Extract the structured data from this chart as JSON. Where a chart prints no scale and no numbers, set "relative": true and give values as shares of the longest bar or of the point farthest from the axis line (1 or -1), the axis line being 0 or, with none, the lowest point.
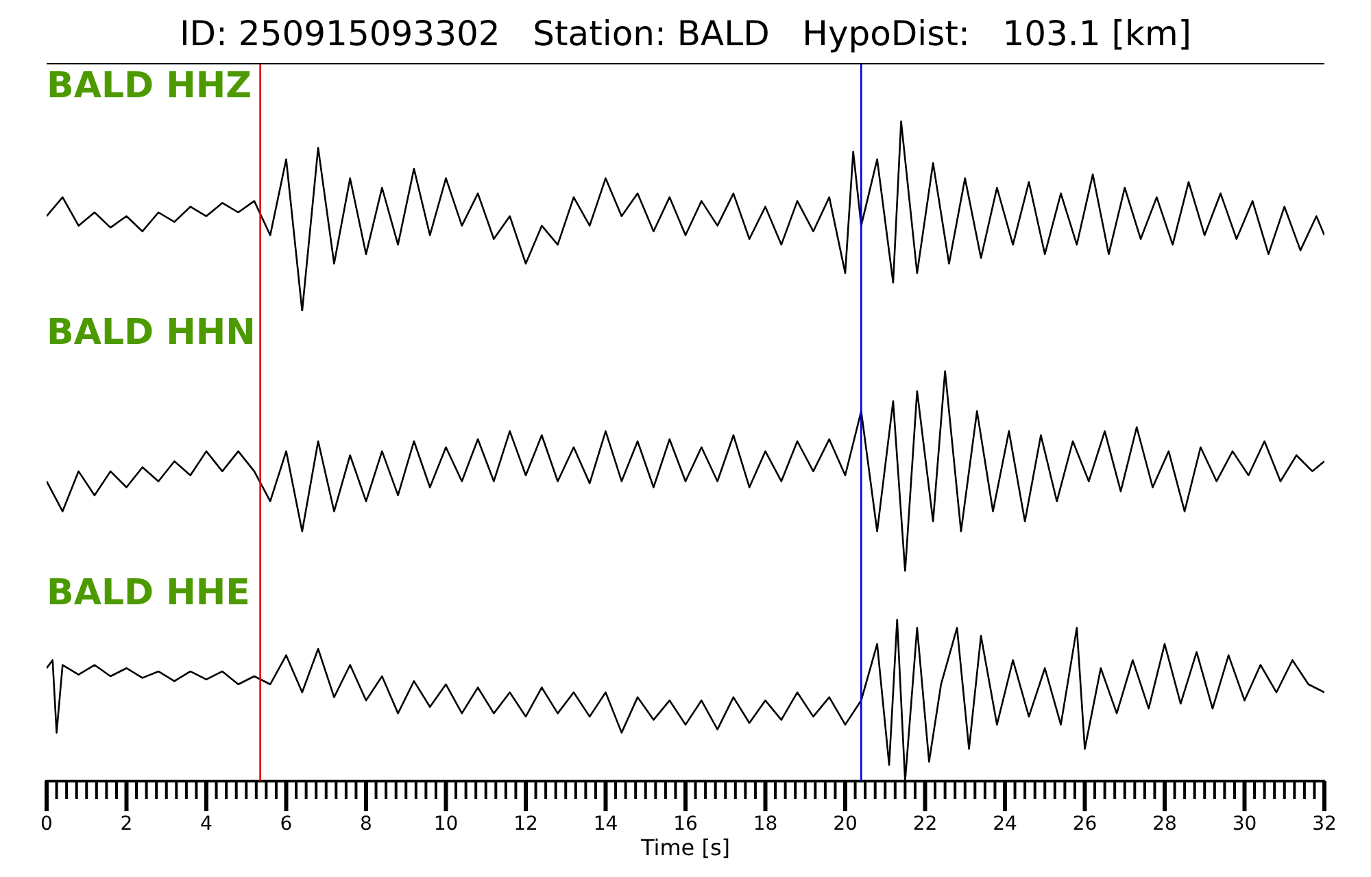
{
  "chart_data": [
    {
      "type": "line",
      "title": "ID: 250915093302   Station: BALD   HypoDist:   103.1 [km]",
      "relative": true,
      "xlim": [
        0,
        32
      ],
      "tick_labels": false,
      "ref_lines": [
        {
          "axis": "x",
          "value": 5.35,
          "color": "#e00000"
        },
        {
          "axis": "x",
          "value": 20.4,
          "color": "#0000e0"
        }
      ],
      "x": [
        0,
        0.4,
        0.8,
        1.2,
        1.6,
        2.0,
        2.4,
        2.8,
        3.2,
        3.6,
        4.0,
        4.4,
        4.8,
        5.2,
        5.6,
        6.0,
        6.4,
        6.8,
        7.2,
        7.6,
        8.0,
        8.4,
        8.8,
        9.2,
        9.6,
        10.0,
        10.4,
        10.8,
        11.2,
        11.6,
        12.0,
        12.4,
        12.8,
        13.2,
        13.6,
        14.0,
        14.4,
        14.8,
        15.2,
        15.6,
        16.0,
        16.4,
        16.8,
        17.2,
        17.6,
        18.0,
        18.4,
        18.8,
        19.2,
        19.6,
        20.0,
        20.2,
        20.4,
        20.8,
        21.2,
        21.4,
        21.8,
        22.2,
        22.6,
        23.0,
        23.4,
        23.8,
        24.2,
        24.6,
        25.0,
        25.4,
        25.8,
        26.2,
        26.6,
        27.0,
        27.4,
        27.8,
        28.2,
        28.6,
        29.0,
        29.4,
        29.8,
        30.2,
        30.6,
        31.0,
        31.4,
        31.8,
        32.0
      ],
      "series": [
        {
          "name": "BALD HHZ",
          "color": "#000000",
          "values": [
            0.5,
            0.6,
            0.45,
            0.52,
            0.44,
            0.5,
            0.42,
            0.52,
            0.47,
            0.55,
            0.5,
            0.57,
            0.52,
            0.58,
            0.4,
            0.8,
            0.0,
            0.86,
            0.25,
            0.7,
            0.3,
            0.65,
            0.35,
            0.75,
            0.4,
            0.7,
            0.45,
            0.62,
            0.38,
            0.5,
            0.25,
            0.45,
            0.35,
            0.6,
            0.45,
            0.7,
            0.5,
            0.62,
            0.42,
            0.6,
            0.4,
            0.58,
            0.45,
            0.62,
            0.38,
            0.55,
            0.35,
            0.58,
            0.42,
            0.6,
            0.2,
            0.84,
            0.45,
            0.8,
            0.15,
            1.0,
            0.2,
            0.78,
            0.25,
            0.7,
            0.28,
            0.65,
            0.35,
            0.68,
            0.3,
            0.62,
            0.35,
            0.72,
            0.3,
            0.65,
            0.38,
            0.6,
            0.35,
            0.68,
            0.4,
            0.62,
            0.38,
            0.58,
            0.3,
            0.55,
            0.32,
            0.5,
            0.4
          ]
        }
      ]
    },
    {
      "type": "line",
      "relative": true,
      "xlim": [
        0,
        32
      ],
      "tick_labels": false,
      "ref_lines": [
        {
          "axis": "x",
          "value": 5.35,
          "color": "#e00000"
        },
        {
          "axis": "x",
          "value": 20.4,
          "color": "#0000e0"
        }
      ],
      "x": [
        0,
        0.4,
        0.8,
        1.2,
        1.6,
        2.0,
        2.4,
        2.8,
        3.2,
        3.6,
        4.0,
        4.4,
        4.8,
        5.2,
        5.6,
        6.0,
        6.4,
        6.8,
        7.2,
        7.6,
        8.0,
        8.4,
        8.8,
        9.2,
        9.6,
        10.0,
        10.4,
        10.8,
        11.2,
        11.6,
        12.0,
        12.4,
        12.8,
        13.2,
        13.6,
        14.0,
        14.4,
        14.8,
        15.2,
        15.6,
        16.0,
        16.4,
        16.8,
        17.2,
        17.6,
        18.0,
        18.4,
        18.8,
        19.2,
        19.6,
        20.0,
        20.4,
        20.8,
        21.2,
        21.5,
        21.8,
        22.2,
        22.5,
        22.9,
        23.3,
        23.7,
        24.1,
        24.5,
        24.9,
        25.3,
        25.7,
        26.1,
        26.5,
        26.9,
        27.3,
        27.7,
        28.1,
        28.5,
        28.9,
        29.3,
        29.7,
        30.1,
        30.5,
        30.9,
        31.3,
        31.7,
        32.0
      ],
      "series": [
        {
          "name": "BALD HHN",
          "color": "#000000",
          "values": [
            0.45,
            0.3,
            0.5,
            0.38,
            0.5,
            0.42,
            0.52,
            0.45,
            0.55,
            0.48,
            0.6,
            0.5,
            0.6,
            0.5,
            0.35,
            0.6,
            0.2,
            0.65,
            0.3,
            0.58,
            0.35,
            0.6,
            0.38,
            0.65,
            0.42,
            0.62,
            0.45,
            0.66,
            0.45,
            0.7,
            0.48,
            0.68,
            0.45,
            0.62,
            0.44,
            0.7,
            0.45,
            0.65,
            0.42,
            0.66,
            0.45,
            0.62,
            0.45,
            0.68,
            0.42,
            0.6,
            0.45,
            0.65,
            0.5,
            0.66,
            0.48,
            0.8,
            0.2,
            0.85,
            0.0,
            0.9,
            0.25,
            1.0,
            0.2,
            0.8,
            0.3,
            0.7,
            0.25,
            0.68,
            0.35,
            0.65,
            0.45,
            0.7,
            0.4,
            0.72,
            0.42,
            0.6,
            0.3,
            0.62,
            0.45,
            0.6,
            0.48,
            0.65,
            0.45,
            0.58,
            0.5,
            0.55
          ]
        }
      ]
    },
    {
      "type": "line",
      "relative": true,
      "xlim": [
        0,
        32
      ],
      "tick_labels": "x",
      "xlabel": "Time [s]",
      "xticks": [
        0,
        {
          "value": 0.25,
          "label": null
        },
        {
          "value": 0.5,
          "label": null
        },
        {
          "value": 0.75,
          "label": null
        },
        {
          "value": 1,
          "label": null
        },
        {
          "value": 1.25,
          "label": null
        },
        {
          "value": 1.5,
          "label": null
        },
        {
          "value": 1.75,
          "label": null
        },
        2,
        {
          "value": 2.25,
          "label": null
        },
        {
          "value": 2.5,
          "label": null
        },
        {
          "value": 2.75,
          "label": null
        },
        {
          "value": 3,
          "label": null
        },
        {
          "value": 3.25,
          "label": null
        },
        {
          "value": 3.5,
          "label": null
        },
        {
          "value": 3.75,
          "label": null
        },
        4,
        {
          "value": 4.25,
          "label": null
        },
        {
          "value": 4.5,
          "label": null
        },
        {
          "value": 4.75,
          "label": null
        },
        {
          "value": 5,
          "label": null
        },
        {
          "value": 5.25,
          "label": null
        },
        {
          "value": 5.5,
          "label": null
        },
        {
          "value": 5.75,
          "label": null
        },
        6,
        {
          "value": 6.25,
          "label": null
        },
        {
          "value": 6.5,
          "label": null
        },
        {
          "value": 6.75,
          "label": null
        },
        {
          "value": 7,
          "label": null
        },
        {
          "value": 7.25,
          "label": null
        },
        {
          "value": 7.5,
          "label": null
        },
        {
          "value": 7.75,
          "label": null
        },
        8,
        {
          "value": 8.25,
          "label": null
        },
        {
          "value": 8.5,
          "label": null
        },
        {
          "value": 8.75,
          "label": null
        },
        {
          "value": 9,
          "label": null
        },
        {
          "value": 9.25,
          "label": null
        },
        {
          "value": 9.5,
          "label": null
        },
        {
          "value": 9.75,
          "label": null
        },
        10,
        {
          "value": 10.25,
          "label": null
        },
        {
          "value": 10.5,
          "label": null
        },
        {
          "value": 10.75,
          "label": null
        },
        {
          "value": 11,
          "label": null
        },
        {
          "value": 11.25,
          "label": null
        },
        {
          "value": 11.5,
          "label": null
        },
        {
          "value": 11.75,
          "label": null
        },
        12,
        {
          "value": 12.25,
          "label": null
        },
        {
          "value": 12.5,
          "label": null
        },
        {
          "value": 12.75,
          "label": null
        },
        {
          "value": 13,
          "label": null
        },
        {
          "value": 13.25,
          "label": null
        },
        {
          "value": 13.5,
          "label": null
        },
        {
          "value": 13.75,
          "label": null
        },
        14,
        {
          "value": 14.25,
          "label": null
        },
        {
          "value": 14.5,
          "label": null
        },
        {
          "value": 14.75,
          "label": null
        },
        {
          "value": 15,
          "label": null
        },
        {
          "value": 15.25,
          "label": null
        },
        {
          "value": 15.5,
          "label": null
        },
        {
          "value": 15.75,
          "label": null
        },
        16,
        {
          "value": 16.25,
          "label": null
        },
        {
          "value": 16.5,
          "label": null
        },
        {
          "value": 16.75,
          "label": null
        },
        {
          "value": 17,
          "label": null
        },
        {
          "value": 17.25,
          "label": null
        },
        {
          "value": 17.5,
          "label": null
        },
        {
          "value": 17.75,
          "label": null
        },
        18,
        {
          "value": 18.25,
          "label": null
        },
        {
          "value": 18.5,
          "label": null
        },
        {
          "value": 18.75,
          "label": null
        },
        {
          "value": 19,
          "label": null
        },
        {
          "value": 19.25,
          "label": null
        },
        {
          "value": 19.5,
          "label": null
        },
        {
          "value": 19.75,
          "label": null
        },
        20,
        {
          "value": 20.25,
          "label": null
        },
        {
          "value": 20.5,
          "label": null
        },
        {
          "value": 20.75,
          "label": null
        },
        {
          "value": 21,
          "label": null
        },
        {
          "value": 21.25,
          "label": null
        },
        {
          "value": 21.5,
          "label": null
        },
        {
          "value": 21.75,
          "label": null
        },
        22,
        {
          "value": 22.25,
          "label": null
        },
        {
          "value": 22.5,
          "label": null
        },
        {
          "value": 22.75,
          "label": null
        },
        {
          "value": 23,
          "label": null
        },
        {
          "value": 23.25,
          "label": null
        },
        {
          "value": 23.5,
          "label": null
        },
        {
          "value": 23.75,
          "label": null
        },
        24,
        {
          "value": 24.25,
          "label": null
        },
        {
          "value": 24.5,
          "label": null
        },
        {
          "value": 24.75,
          "label": null
        },
        {
          "value": 25,
          "label": null
        },
        {
          "value": 25.25,
          "label": null
        },
        {
          "value": 25.5,
          "label": null
        },
        {
          "value": 25.75,
          "label": null
        },
        26,
        {
          "value": 26.25,
          "label": null
        },
        {
          "value": 26.5,
          "label": null
        },
        {
          "value": 26.75,
          "label": null
        },
        {
          "value": 27,
          "label": null
        },
        {
          "value": 27.25,
          "label": null
        },
        {
          "value": 27.5,
          "label": null
        },
        {
          "value": 27.75,
          "label": null
        },
        28,
        {
          "value": 28.25,
          "label": null
        },
        {
          "value": 28.5,
          "label": null
        },
        {
          "value": 28.75,
          "label": null
        },
        {
          "value": 29,
          "label": null
        },
        {
          "value": 29.25,
          "label": null
        },
        {
          "value": 29.5,
          "label": null
        },
        {
          "value": 29.75,
          "label": null
        },
        30,
        {
          "value": 30.25,
          "label": null
        },
        {
          "value": 30.5,
          "label": null
        },
        {
          "value": 30.75,
          "label": null
        },
        {
          "value": 31,
          "label": null
        },
        {
          "value": 31.25,
          "label": null
        },
        {
          "value": 31.5,
          "label": null
        },
        {
          "value": 31.75,
          "label": null
        },
        32
      ],
      "ref_lines": [
        {
          "axis": "x",
          "value": 5.35,
          "color": "#e00000"
        },
        {
          "axis": "x",
          "value": 20.4,
          "color": "#0000e0"
        }
      ],
      "x": [
        0,
        0.15,
        0.25,
        0.4,
        0.8,
        1.2,
        1.6,
        2.0,
        2.4,
        2.8,
        3.2,
        3.6,
        4.0,
        4.4,
        4.8,
        5.2,
        5.6,
        6.0,
        6.4,
        6.8,
        7.2,
        7.6,
        8.0,
        8.4,
        8.8,
        9.2,
        9.6,
        10.0,
        10.4,
        10.8,
        11.2,
        11.6,
        12.0,
        12.4,
        12.8,
        13.2,
        13.6,
        14.0,
        14.4,
        14.8,
        15.2,
        15.6,
        16.0,
        16.4,
        16.8,
        17.2,
        17.6,
        18.0,
        18.4,
        18.8,
        19.2,
        19.6,
        20.0,
        20.4,
        20.8,
        21.1,
        21.3,
        21.5,
        21.8,
        22.1,
        22.4,
        22.8,
        23.1,
        23.4,
        23.8,
        24.2,
        24.6,
        25.0,
        25.4,
        25.8,
        26.0,
        26.4,
        26.8,
        27.2,
        27.6,
        28.0,
        28.4,
        28.8,
        29.2,
        29.6,
        30.0,
        30.4,
        30.8,
        31.2,
        31.6,
        32.0
      ],
      "series": [
        {
          "name": "BALD HHE",
          "color": "#000000",
          "values": [
            0.7,
            0.75,
            0.3,
            0.72,
            0.66,
            0.72,
            0.65,
            0.7,
            0.64,
            0.68,
            0.62,
            0.68,
            0.63,
            0.68,
            0.6,
            0.65,
            0.6,
            0.78,
            0.55,
            0.82,
            0.52,
            0.72,
            0.5,
            0.65,
            0.42,
            0.62,
            0.46,
            0.6,
            0.42,
            0.58,
            0.42,
            0.55,
            0.4,
            0.58,
            0.42,
            0.55,
            0.4,
            0.55,
            0.3,
            0.52,
            0.38,
            0.5,
            0.35,
            0.5,
            0.32,
            0.52,
            0.36,
            0.5,
            0.38,
            0.55,
            0.4,
            0.52,
            0.35,
            0.5,
            0.85,
            0.1,
            1.0,
            0.0,
            0.95,
            0.12,
            0.6,
            0.95,
            0.2,
            0.9,
            0.35,
            0.75,
            0.4,
            0.7,
            0.35,
            0.95,
            0.2,
            0.7,
            0.42,
            0.75,
            0.45,
            0.85,
            0.48,
            0.8,
            0.45,
            0.78,
            0.5,
            0.72,
            0.55,
            0.75,
            0.6,
            0.55
          ]
        }
      ]
    }
  ]
}
